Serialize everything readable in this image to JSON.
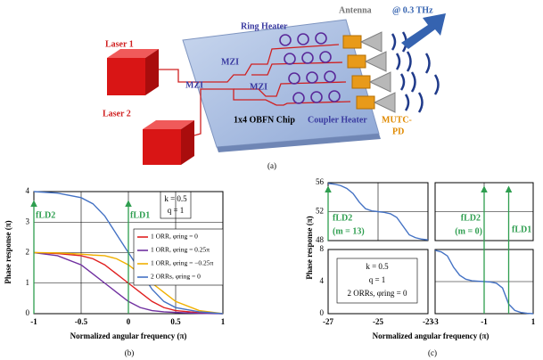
{
  "diagram": {
    "laser_1": "Laser 1",
    "laser_2": "Laser 2",
    "ring_heater": "Ring Heater",
    "mzi": [
      "MZI",
      "MZI",
      "MZI"
    ],
    "chip": "1x4 OBFN Chip",
    "coupler_heater": "Coupler Heater",
    "antenna": "Antenna",
    "frequency": "@ 0.3 THz",
    "pd": [
      "MUTC-",
      "PD"
    ]
  },
  "captions": [
    "(a)",
    "(b)",
    "(c)"
  ],
  "chart_data": [
    {
      "type": "line",
      "xlabel": "Normalized angular frequency (π)",
      "ylabel": "Phase response (π)",
      "x": [
        -1,
        -0.75,
        -0.5,
        -0.375,
        -0.25,
        -0.125,
        0,
        0.125,
        0.25,
        0.375,
        0.5,
        0.75,
        1
      ],
      "series": [
        {
          "name": "1 ORR, φring = 0",
          "color": "#e02020",
          "values": [
            2,
            1.97,
            1.9,
            1.8,
            1.6,
            1.3,
            1.0,
            0.7,
            0.4,
            0.2,
            0.1,
            0.03,
            0
          ]
        },
        {
          "name": "1 ORR, φring = 0.25π",
          "color": "#7030a0",
          "values": [
            2,
            1.9,
            1.6,
            1.3,
            1.0,
            0.7,
            0.4,
            0.2,
            0.1,
            0.06,
            0.04,
            0.01,
            0
          ]
        },
        {
          "name": "1 ORR, φring = −0.25π",
          "color": "#f0b000",
          "values": [
            2,
            1.99,
            1.95,
            1.92,
            1.9,
            1.8,
            1.6,
            1.3,
            1.0,
            0.7,
            0.4,
            0.1,
            0
          ]
        },
        {
          "name": "2 ORRs, φring = 0",
          "color": "#4472c4",
          "values": [
            4,
            3.95,
            3.8,
            3.6,
            3.2,
            2.6,
            2.0,
            1.4,
            0.8,
            0.4,
            0.2,
            0.06,
            0
          ]
        }
      ],
      "xlim": [
        -1,
        1
      ],
      "ylim": [
        0,
        4
      ],
      "xticks": [
        -1,
        -0.5,
        0,
        0.5,
        1
      ],
      "yticks": [
        0,
        1,
        2,
        3,
        4
      ],
      "grid": true,
      "legend": "center right",
      "annotations": [
        "k = 0.5",
        "q = 1"
      ],
      "marker_color": "#2e9e4f",
      "markers": [
        {
          "x": -1,
          "label": [
            "fLD2"
          ]
        },
        {
          "x": 0,
          "label": [
            "fLD1"
          ]
        }
      ]
    },
    {
      "type": "line",
      "xlabel": "Normalized angular frequency (π)",
      "ylabel": "Phase response (π)",
      "x": [
        -27,
        -26.75,
        -26.5,
        -26.25,
        -26,
        -25.75,
        -25.5,
        -25.25,
        -25,
        -24.75,
        -24.5,
        -24.25,
        -24,
        -23.75,
        -23.5,
        -23.25,
        -23
      ],
      "series": [
        {
          "color": "#4472c4",
          "values": [
            55.9,
            55.8,
            55.6,
            55.2,
            54.5,
            53.3,
            52.4,
            52.1,
            52,
            51.9,
            51.7,
            51.2,
            50,
            48.8,
            48.4,
            48.2,
            48.1
          ]
        }
      ],
      "xlim": [
        -27,
        -23
      ],
      "ylim": [
        48,
        56
      ],
      "xticks": [
        -27,
        -25,
        -23
      ],
      "yticks": [
        48,
        52,
        56
      ],
      "grid": true,
      "marker_color": "#2e9e4f",
      "markers": [
        {
          "x": -27,
          "label": [
            "fLD2",
            "(m = 13)"
          ]
        }
      ]
    },
    {
      "type": "line",
      "x": [
        -3,
        -2.75,
        -2.5,
        -2.25,
        -2,
        -1.75,
        -1.5,
        -1.25,
        -1,
        -0.75,
        -0.5,
        -0.25,
        0,
        0.25,
        0.5,
        0.75,
        1
      ],
      "series": [
        {
          "color": "#4472c4",
          "values": [
            7.9,
            7.7,
            7.2,
            5.8,
            4.8,
            4.3,
            4.1,
            4.05,
            4,
            3.95,
            3.8,
            3.2,
            1.2,
            0.4,
            0.15,
            0.05,
            0
          ]
        }
      ],
      "xlim": [
        -3,
        1
      ],
      "ylim": [
        0,
        8
      ],
      "xticks": [
        -3,
        -1,
        1
      ],
      "yticks": [
        0,
        4,
        8
      ],
      "grid": true,
      "annotations": [
        "k = 0.5",
        "q = 1",
        "2 ORRs, φring = 0"
      ],
      "marker_color": "#2e9e4f",
      "markers": [
        {
          "x": -1,
          "label": [
            "fLD2",
            "(m = 0)"
          ]
        },
        {
          "x": 0,
          "label": [
            "fLD1"
          ]
        }
      ]
    }
  ]
}
